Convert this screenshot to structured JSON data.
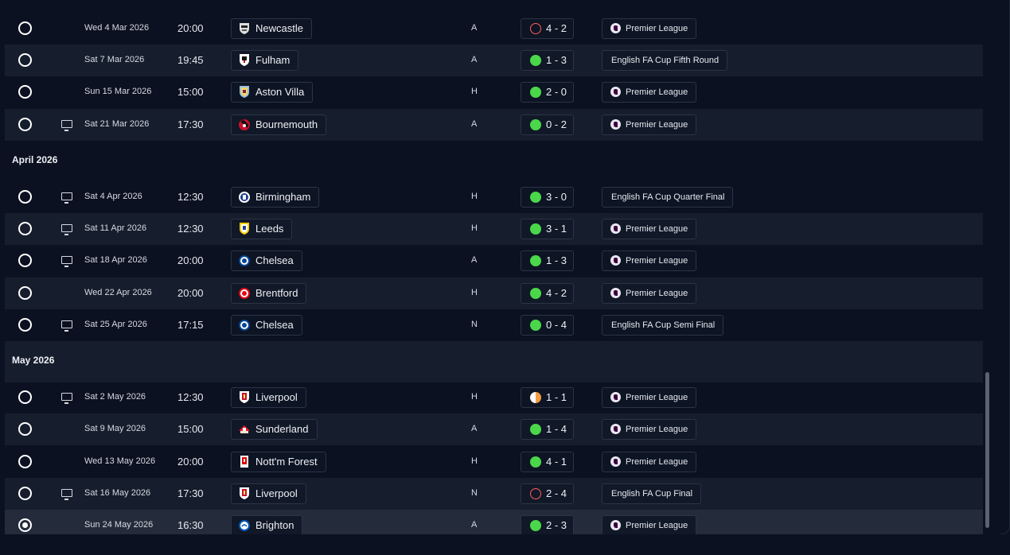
{
  "months": [
    "April 2026",
    "May 2026"
  ],
  "fixtures": [
    {
      "date": "Wed 4 Mar 2026",
      "time": "20:00",
      "team": "Newcastle",
      "venue": "A",
      "score": "4 - 2",
      "result": "loss",
      "competition": "Premier League",
      "tv": false
    },
    {
      "date": "Sat 7 Mar 2026",
      "time": "19:45",
      "team": "Fulham",
      "venue": "A",
      "score": "1 - 3",
      "result": "win",
      "competition": "English FA Cup Fifth Round",
      "tv": false
    },
    {
      "date": "Sun 15 Mar 2026",
      "time": "15:00",
      "team": "Aston Villa",
      "venue": "H",
      "score": "2 - 0",
      "result": "win",
      "competition": "Premier League",
      "tv": false
    },
    {
      "date": "Sat 21 Mar 2026",
      "time": "17:30",
      "team": "Bournemouth",
      "venue": "A",
      "score": "0 - 2",
      "result": "win",
      "competition": "Premier League",
      "tv": true
    },
    {
      "date": "Sat 4 Apr 2026",
      "time": "12:30",
      "team": "Birmingham",
      "venue": "H",
      "score": "3 - 0",
      "result": "win",
      "competition": "English FA Cup Quarter Final",
      "tv": true
    },
    {
      "date": "Sat 11 Apr 2026",
      "time": "12:30",
      "team": "Leeds",
      "venue": "H",
      "score": "3 - 1",
      "result": "win",
      "competition": "Premier League",
      "tv": true
    },
    {
      "date": "Sat 18 Apr 2026",
      "time": "20:00",
      "team": "Chelsea",
      "venue": "A",
      "score": "1 - 3",
      "result": "win",
      "competition": "Premier League",
      "tv": true
    },
    {
      "date": "Wed 22 Apr 2026",
      "time": "20:00",
      "team": "Brentford",
      "venue": "H",
      "score": "4 - 2",
      "result": "win",
      "competition": "Premier League",
      "tv": false
    },
    {
      "date": "Sat 25 Apr 2026",
      "time": "17:15",
      "team": "Chelsea",
      "venue": "N",
      "score": "0 - 4",
      "result": "win",
      "competition": "English FA Cup Semi Final",
      "tv": true
    },
    {
      "date": "Sat 2 May 2026",
      "time": "12:30",
      "team": "Liverpool",
      "venue": "H",
      "score": "1 - 1",
      "result": "draw",
      "competition": "Premier League",
      "tv": true
    },
    {
      "date": "Sat 9 May 2026",
      "time": "15:00",
      "team": "Sunderland",
      "venue": "A",
      "score": "1 - 4",
      "result": "win",
      "competition": "Premier League",
      "tv": false
    },
    {
      "date": "Wed 13 May 2026",
      "time": "20:00",
      "team": "Nott'm Forest",
      "venue": "H",
      "score": "4 - 1",
      "result": "win",
      "competition": "Premier League",
      "tv": false
    },
    {
      "date": "Sat 16 May 2026",
      "time": "17:30",
      "team": "Liverpool",
      "venue": "N",
      "score": "2 - 4",
      "result": "loss",
      "competition": "English FA Cup Final",
      "tv": true
    },
    {
      "date": "Sun 24 May 2026",
      "time": "16:30",
      "team": "Brighton",
      "venue": "A",
      "score": "2 - 3",
      "result": "win",
      "competition": "Premier League",
      "tv": false,
      "selected": true
    }
  ],
  "result_colors": {
    "win": "#4ad74a",
    "loss": "#ff5d5d",
    "draw": "#f59b42"
  }
}
